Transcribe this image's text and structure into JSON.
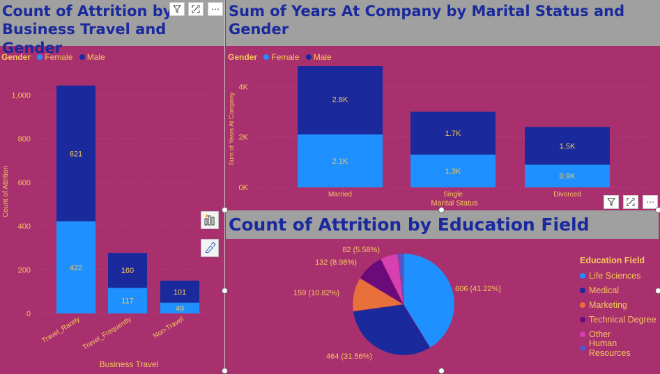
{
  "colors": {
    "background": "#a8306f",
    "title_bg": "#a0a0a0",
    "title_text": "#1a2a9c",
    "label": "#f6c75a",
    "female": "#1e90ff",
    "male": "#1a2a9c",
    "life_sciences": "#1e90ff",
    "medical": "#1a2a9c",
    "marketing": "#e8703a",
    "technical_degree": "#6b0a7a",
    "other": "#d83fb0",
    "human_resources": "#5656c8"
  },
  "chart1": {
    "title_line1": "Count of Attrition by",
    "title_line2": "Business Travel and Gender",
    "legend_title": "Gender",
    "legend_female": "Female",
    "legend_male": "Male"
  },
  "chart2": {
    "title_line1": "Sum of Years At Company by Marital Status and",
    "title_line2": "Gender",
    "legend_title": "Gender",
    "legend_female": "Female",
    "legend_male": "Male"
  },
  "chart3": {
    "title": "Count of Attrition by Education Field",
    "legend_title": "Education Field",
    "legend_items": [
      "Life Sciences",
      "Medical",
      "Marketing",
      "Technical Degree",
      "Other",
      "Human Resources"
    ]
  },
  "toolbar_icons": [
    "filter-icon",
    "focus-mode-icon",
    "more-options-icon"
  ],
  "chart_data": [
    {
      "type": "bar",
      "stacked": true,
      "title": "Count of Attrition by Business Travel and Gender",
      "xlabel": "Business Travel",
      "ylabel": "Count of Attrition",
      "categories": [
        "Travel_Rarely",
        "Travel_Frequently",
        "Non-Travel"
      ],
      "series": [
        {
          "name": "Female",
          "values": [
            422,
            117,
            49
          ],
          "labels": [
            "422",
            "117",
            "49"
          ]
        },
        {
          "name": "Male",
          "values": [
            621,
            160,
            101
          ],
          "labels": [
            "621",
            "160",
            "101"
          ]
        }
      ],
      "ylim": [
        0,
        1100
      ],
      "yticks": [
        0,
        200,
        400,
        600,
        800,
        1000
      ],
      "ytick_labels": [
        "0",
        "200",
        "400",
        "600",
        "800",
        "1,000"
      ],
      "grid": true,
      "legend": "top-left"
    },
    {
      "type": "bar",
      "stacked": true,
      "title": "Sum of Years At Company by Marital Status and Gender",
      "xlabel": "Marital Status",
      "ylabel": "Sum of Years At Company",
      "categories": [
        "Married",
        "Single",
        "Divorced"
      ],
      "series": [
        {
          "name": "Female",
          "values": [
            2100,
            1300,
            900
          ],
          "labels": [
            "2.1K",
            "1.3K",
            "0.9K"
          ]
        },
        {
          "name": "Male",
          "values": [
            2800,
            1700,
            1500
          ],
          "labels": [
            "2.8K",
            "1.7K",
            "1.5K"
          ]
        }
      ],
      "ylim": [
        0,
        4700
      ],
      "yticks": [
        0,
        2000,
        4000
      ],
      "ytick_labels": [
        "0K",
        "2K",
        "4K"
      ],
      "grid": true,
      "legend": "top-left"
    },
    {
      "type": "pie",
      "title": "Count of Attrition by Education Field",
      "categories": [
        "Life Sciences",
        "Medical",
        "Marketing",
        "Technical Degree",
        "Other",
        "Human Resources"
      ],
      "values": [
        606,
        464,
        159,
        132,
        82,
        27
      ],
      "labels": [
        "606 (41.22%)",
        "464 (31.56%)",
        "159 (10.82%)",
        "132 (8.98%)",
        "82 (5.58%)",
        ""
      ],
      "legend": "right"
    }
  ]
}
